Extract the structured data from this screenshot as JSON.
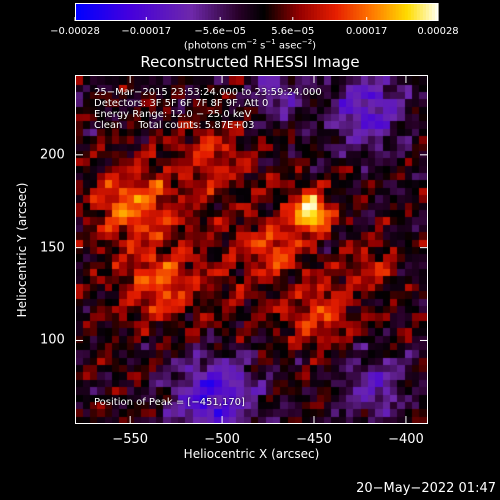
{
  "chart_data": {
    "type": "heatmap",
    "title": "Reconstructed RHESSI Image",
    "xlabel": "Heliocentric X (arcsec)",
    "ylabel": "Heliocentric Y (arcsec)",
    "xlim": [
      -580,
      -388
    ],
    "ylim": [
      55,
      243
    ],
    "x_ticks": [
      -550,
      -500,
      -450,
      -400
    ],
    "y_ticks": [
      100,
      150,
      200
    ],
    "x_tick_labels": [
      "−550",
      "−500",
      "−450",
      "−400"
    ],
    "y_tick_labels": [
      "100",
      "150",
      "200"
    ],
    "colorbar": {
      "range": [
        -0.00028,
        0.00028
      ],
      "tick_values": [
        -0.00028,
        -0.00017,
        -5.6e-05,
        5.6e-05,
        0.00017,
        0.00028
      ],
      "tick_labels": [
        "−0.00028",
        "−0.00017",
        "−5.6e−05",
        "5.6e−05",
        "0.00017",
        "0.00028"
      ],
      "unit_prefix": "(photons cm",
      "unit_exp1": "−2",
      "unit_mid": " s",
      "unit_exp2": "−1",
      "unit_mid2": " asec",
      "unit_exp3": "−2",
      "unit_suffix": ")"
    },
    "peak": {
      "x": -451,
      "y": 170
    },
    "bright_sources": [
      {
        "x": -451,
        "y": 170,
        "sigma": 7,
        "amp": 0.00028
      },
      {
        "x": -470,
        "y": 150,
        "sigma": 9,
        "amp": 0.00012
      },
      {
        "x": -550,
        "y": 175,
        "sigma": 14,
        "amp": 0.00014
      },
      {
        "x": -535,
        "y": 130,
        "sigma": 12,
        "amp": 0.00011
      },
      {
        "x": -445,
        "y": 115,
        "sigma": 12,
        "amp": 0.00011
      },
      {
        "x": -505,
        "y": 200,
        "sigma": 12,
        "amp": 9e-05
      },
      {
        "x": -420,
        "y": 140,
        "sigma": 10,
        "amp": 8e-05
      }
    ],
    "dark_sources": [
      {
        "x": -505,
        "y": 70,
        "sigma": 16,
        "amp": -0.0002
      },
      {
        "x": -420,
        "y": 225,
        "sigma": 14,
        "amp": -0.00016
      },
      {
        "x": -415,
        "y": 75,
        "sigma": 12,
        "amp": -0.00012
      },
      {
        "x": -470,
        "y": 235,
        "sigma": 10,
        "amp": -0.00012
      }
    ]
  },
  "info": {
    "time_range": "25−Mar−2015 23:53:24.000 to 23:59:24.000",
    "detectors": "Detectors: 3F 5F 6F 7F 8F 9F, Att 0",
    "energy": "Energy Range: 12.0 − 25.0 keV",
    "clean": "Clean     Total counts: 5.87E+03",
    "peak_position": "Position of Peak = [−451,170]"
  },
  "timestamp": "20−May−2022 01:47"
}
